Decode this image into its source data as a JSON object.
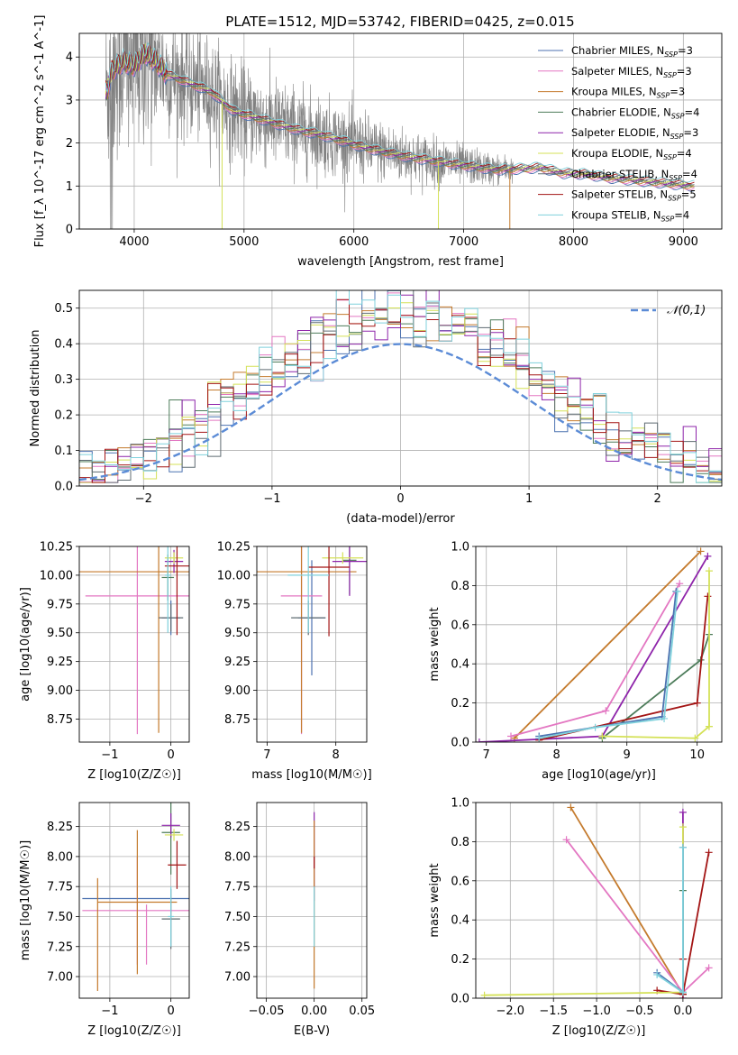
{
  "figure_title": "PLATE=1512, MJD=53742, FIBERID=0425, z=0.015",
  "models": [
    {
      "name": "Chabrier MILES",
      "nssp": "3",
      "color": "#4c72b0"
    },
    {
      "name": "Salpeter MILES",
      "nssp": "3",
      "color": "#e377c2"
    },
    {
      "name": "Kroupa MILES",
      "nssp": "3",
      "color": "#c47a2c"
    },
    {
      "name": "Chabrier ELODIE",
      "nssp": "4",
      "color": "#4d7c5a"
    },
    {
      "name": "Salpeter ELODIE",
      "nssp": "3",
      "color": "#8e24aa"
    },
    {
      "name": "Kroupa ELODIE",
      "nssp": "4",
      "color": "#d4e157"
    },
    {
      "name": "Chabrier STELIB",
      "nssp": "4",
      "color": "#5f6b72"
    },
    {
      "name": "Salpeter STELIB",
      "nssp": "5",
      "color": "#a31515"
    },
    {
      "name": "Kroupa STELIB",
      "nssp": "4",
      "color": "#7fd1dc"
    }
  ],
  "chart_data": [
    {
      "id": "spectrum",
      "type": "line",
      "xlabel": "wavelength [Angstrom, rest frame]",
      "ylabel": "Flux [f_λ 10^-17 erg cm^-2 s^-1 A^-1]",
      "xlim": [
        3500,
        9350
      ],
      "ylim": [
        0,
        4.55
      ],
      "xticks": [
        4000,
        5000,
        6000,
        7000,
        8000,
        9000
      ],
      "yticks": [
        0,
        1,
        2,
        3,
        4
      ],
      "legend": "top-right",
      "continuum": [
        [
          3750,
          3.2
        ],
        [
          3800,
          3.7
        ],
        [
          3900,
          3.9
        ],
        [
          4000,
          3.8
        ],
        [
          4100,
          4.1
        ],
        [
          4200,
          3.9
        ],
        [
          4300,
          3.6
        ],
        [
          4500,
          3.4
        ],
        [
          4700,
          3.2
        ],
        [
          4900,
          2.75
        ],
        [
          5100,
          2.6
        ],
        [
          5300,
          2.45
        ],
        [
          5500,
          2.3
        ],
        [
          5700,
          2.2
        ],
        [
          5900,
          2.05
        ],
        [
          6100,
          1.9
        ],
        [
          6300,
          1.78
        ],
        [
          6500,
          1.68
        ],
        [
          6700,
          1.6
        ],
        [
          6900,
          1.52
        ],
        [
          7100,
          1.45
        ],
        [
          7300,
          1.38
        ],
        [
          7500,
          1.4
        ],
        [
          7700,
          1.43
        ],
        [
          7900,
          1.3
        ],
        [
          8100,
          1.28
        ],
        [
          8300,
          1.2
        ],
        [
          8500,
          1.15
        ],
        [
          8700,
          1.1
        ],
        [
          8900,
          1.05
        ],
        [
          9100,
          1.0
        ]
      ],
      "data_xmin": 3740,
      "data_xmax": 9100,
      "noise_end": 7450
    },
    {
      "id": "residuals",
      "type": "bar",
      "xlabel": "(data-model)/error",
      "ylabel": "Normed distribution",
      "xlim": [
        -2.5,
        2.5
      ],
      "ylim": [
        0,
        0.55
      ],
      "xticks": [
        -2,
        -1,
        0,
        1,
        2
      ],
      "yticks": [
        0,
        0.1,
        0.2,
        0.3,
        0.4,
        0.5
      ],
      "legend": "top-right",
      "reference_label": "𝒩(0,1)",
      "reference_color": "#5b8bd6",
      "bin_width": 0.1
    },
    {
      "id": "age_z",
      "type": "scatter",
      "xlabel": "Z [log10(Z/Z☉)]",
      "ylabel": "age [log10(age/yr)]",
      "xlim": [
        -1.5,
        0.3
      ],
      "ylim": [
        8.55,
        10.25
      ],
      "xticks": [
        -1,
        0
      ],
      "yticks": [
        8.75,
        9.0,
        9.25,
        9.5,
        9.75,
        10.0,
        10.25
      ],
      "crosses": [
        {
          "m": 0,
          "x": 0.0,
          "y": 9.63,
          "xe": 0.15,
          "ye": 0.15
        },
        {
          "m": 1,
          "x": -0.55,
          "y": 9.82,
          "xe": 0.85,
          "ye": 1.2
        },
        {
          "m": 2,
          "x": -0.2,
          "y": 10.03,
          "xe": 1.3,
          "ye": 1.4
        },
        {
          "m": 3,
          "x": -0.05,
          "y": 9.98,
          "xe": 0.1,
          "ye": 0.2
        },
        {
          "m": 4,
          "x": 0.05,
          "y": 10.12,
          "xe": 0.15,
          "ye": 0.1
        },
        {
          "m": 5,
          "x": 0.05,
          "y": 10.15,
          "xe": 0.15,
          "ye": 0.05
        },
        {
          "m": 6,
          "x": 0.0,
          "y": 9.63,
          "xe": 0.2,
          "ye": 0.12
        },
        {
          "m": 7,
          "x": 0.1,
          "y": 10.08,
          "xe": 0.2,
          "ye": 0.6
        },
        {
          "m": 8,
          "x": -0.05,
          "y": 10.0,
          "xe": 0.05,
          "ye": 0.5
        }
      ]
    },
    {
      "id": "mass_age",
      "type": "scatter",
      "xlabel": "mass [log10(M/M☉)]",
      "ylabel": "",
      "xlim": [
        6.85,
        8.45
      ],
      "ylim": [
        8.55,
        10.25
      ],
      "xticks": [
        7,
        8
      ],
      "yticks": [
        8.75,
        9.0,
        9.25,
        9.5,
        9.75,
        10.0,
        10.25
      ],
      "crosses": [
        {
          "m": 0,
          "x": 7.65,
          "y": 9.63,
          "xe": 0.2,
          "ye": 0.5
        },
        {
          "m": 1,
          "x": 7.5,
          "y": 9.82,
          "xe": 0.3,
          "ye": 1.2
        },
        {
          "m": 2,
          "x": 7.5,
          "y": 10.03,
          "xe": 0.8,
          "ye": 1.4
        },
        {
          "m": 3,
          "x": 8.2,
          "y": 10.13,
          "xe": 0.1,
          "ye": 0.3
        },
        {
          "m": 4,
          "x": 8.2,
          "y": 10.12,
          "xe": 0.25,
          "ye": 0.3
        },
        {
          "m": 5,
          "x": 8.1,
          "y": 10.15,
          "xe": 0.3,
          "ye": 0.05
        },
        {
          "m": 6,
          "x": 7.6,
          "y": 9.63,
          "xe": 0.25,
          "ye": 0.15
        },
        {
          "m": 7,
          "x": 7.9,
          "y": 10.07,
          "xe": 0.3,
          "ye": 0.6
        },
        {
          "m": 8,
          "x": 7.6,
          "y": 10.0,
          "xe": 0.3,
          "ye": 0.5
        }
      ]
    },
    {
      "id": "mw_age",
      "type": "line",
      "xlabel": "age [log10(age/yr)]",
      "ylabel": "mass weight",
      "xlim": [
        6.85,
        10.35
      ],
      "ylim": [
        0,
        1.0
      ],
      "xticks": [
        7,
        8,
        9,
        10
      ],
      "yticks": [
        0,
        0.2,
        0.4,
        0.6,
        0.8,
        1.0
      ],
      "series": [
        {
          "m": 2,
          "x": [
            7.4,
            10.05
          ],
          "y": [
            0.02,
            0.975
          ]
        },
        {
          "m": 1,
          "x": [
            7.35,
            8.7,
            9.75
          ],
          "y": [
            0.03,
            0.16,
            0.81
          ]
        },
        {
          "m": 4,
          "x": [
            6.9,
            8.65,
            10.15
          ],
          "y": [
            0.0,
            0.03,
            0.95
          ]
        },
        {
          "m": 3,
          "x": [
            8.65,
            10.05,
            10.17
          ],
          "y": [
            0.02,
            0.42,
            0.55
          ]
        },
        {
          "m": 7,
          "x": [
            7.75,
            10.0,
            10.15
          ],
          "y": [
            0.01,
            0.2,
            0.745
          ]
        },
        {
          "m": 5,
          "x": [
            8.65,
            9.97,
            10.17
          ],
          "y": [
            0.03,
            0.02,
            0.08
          ]
        },
        {
          "m": 5,
          "x": [
            10.17,
            10.17
          ],
          "y": [
            0.08,
            0.875
          ]
        },
        {
          "m": 0,
          "x": [
            7.75,
            9.5,
            9.7
          ],
          "y": [
            0.03,
            0.13,
            0.77
          ]
        },
        {
          "m": 8,
          "x": [
            7.75,
            8.55,
            9.53,
            9.72
          ],
          "y": [
            0.02,
            0.075,
            0.12,
            0.77
          ]
        }
      ]
    },
    {
      "id": "mass_z",
      "type": "scatter",
      "xlabel": "Z [log10(Z/Z☉)]",
      "ylabel": "mass [log10(M/M☉)]",
      "xlim": [
        -1.5,
        0.3
      ],
      "ylim": [
        6.82,
        8.45
      ],
      "xticks": [
        -1,
        0
      ],
      "yticks": [
        7.0,
        7.25,
        7.5,
        7.75,
        8.0,
        8.25
      ],
      "crosses": [
        {
          "m": 0,
          "x": -0.55,
          "y": 7.65,
          "xe": 0.9,
          "ye": 0.0
        },
        {
          "m": 1,
          "x": -0.55,
          "y": 7.55,
          "xe": 0.9,
          "ye": 0.45
        },
        {
          "m": 2,
          "x": -0.55,
          "y": 7.62,
          "xe": 0.65,
          "ye": 0.6
        },
        {
          "m": 3,
          "x": 0.0,
          "y": 8.2,
          "xe": 0.15,
          "ye": 0.35
        },
        {
          "m": 4,
          "x": 0.0,
          "y": 8.26,
          "xe": 0.15,
          "ye": 0.1
        },
        {
          "m": 5,
          "x": 0.05,
          "y": 8.18,
          "xe": 0.15,
          "ye": 0.05
        },
        {
          "m": 6,
          "x": 0.0,
          "y": 7.48,
          "xe": 0.15,
          "ye": 0.25
        },
        {
          "m": 7,
          "x": 0.1,
          "y": 7.93,
          "xe": 0.15,
          "ye": 0.2
        },
        {
          "m": 8,
          "x": 0.0,
          "y": 7.5,
          "xe": 0.05,
          "ye": 0.25
        },
        {
          "m": 2,
          "x": -1.2,
          "y": 7.35,
          "xe": 0.0,
          "ye": 0.47
        },
        {
          "m": 1,
          "x": -0.4,
          "y": 7.35,
          "xe": 0.0,
          "ye": 0.25
        }
      ]
    },
    {
      "id": "mass_ebv",
      "type": "scatter",
      "xlabel": "E(B-V)",
      "ylabel": "",
      "xlim": [
        -0.06,
        0.055
      ],
      "ylim": [
        6.82,
        8.45
      ],
      "xticks": [
        -0.05,
        0.0,
        0.05
      ],
      "yticks": [
        7.0,
        7.25,
        7.5,
        7.75,
        8.0,
        8.25
      ],
      "crosses": [
        {
          "m": 4,
          "x": 0.0,
          "y": 8.0,
          "xe": 0.0,
          "ye": 0.37
        },
        {
          "m": 2,
          "x": 0.0,
          "y": 7.6,
          "xe": 0.0,
          "ye": 0.7
        },
        {
          "m": 7,
          "x": 0.0,
          "y": 7.95,
          "xe": 0.0,
          "ye": 0.05
        },
        {
          "m": 8,
          "x": 0.0,
          "y": 7.5,
          "xe": 0.0,
          "ye": 0.25
        }
      ]
    },
    {
      "id": "mw_z",
      "type": "line",
      "xlabel": "Z [log10(Z/Z☉)]",
      "ylabel": "mass weight",
      "xlim": [
        -2.4,
        0.45
      ],
      "ylim": [
        0,
        1.0
      ],
      "xticks": [
        -2.0,
        -1.5,
        -1.0,
        -0.5,
        0.0
      ],
      "yticks": [
        0,
        0.2,
        0.4,
        0.6,
        0.8,
        1.0
      ],
      "series": [
        {
          "m": 2,
          "x": [
            -1.3,
            0.0
          ],
          "y": [
            0.975,
            0.02
          ]
        },
        {
          "m": 1,
          "x": [
            -1.35,
            0.0,
            0.3
          ],
          "y": [
            0.81,
            0.03,
            0.155
          ]
        },
        {
          "m": 4,
          "x": [
            0.0,
            0.0
          ],
          "y": [
            0.0,
            0.95
          ]
        },
        {
          "m": 3,
          "x": [
            0.0,
            0.0
          ],
          "y": [
            0.02,
            0.55
          ]
        },
        {
          "m": 7,
          "x": [
            -0.3,
            0.0,
            0.3
          ],
          "y": [
            0.04,
            0.02,
            0.745
          ]
        },
        {
          "m": 7,
          "x": [
            0.0,
            0.0
          ],
          "y": [
            0.02,
            0.2
          ]
        },
        {
          "m": 5,
          "x": [
            -2.3,
            0.0,
            0.0
          ],
          "y": [
            0.015,
            0.03,
            0.875
          ]
        },
        {
          "m": 0,
          "x": [
            -0.3,
            0.0,
            0.0
          ],
          "y": [
            0.13,
            0.03,
            0.77
          ]
        },
        {
          "m": 8,
          "x": [
            -0.3,
            0.0,
            0.0
          ],
          "y": [
            0.12,
            0.03,
            0.77
          ]
        }
      ]
    }
  ]
}
